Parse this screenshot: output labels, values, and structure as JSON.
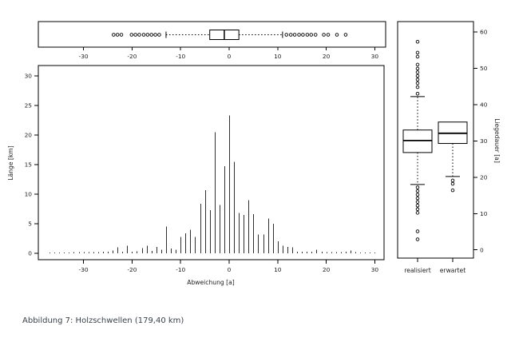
{
  "figure": {
    "caption": "Abbildung 7: Holzschwellen (179,40 km)",
    "background": "#ffffff",
    "line_color": "#000000",
    "bar_color": "#2f2f2f",
    "caption_color": "#3b4149"
  },
  "chart_data": [
    {
      "id": "top-boxplot",
      "type": "boxplot",
      "orientation": "horizontal",
      "x_ticks": [
        -30,
        -20,
        -10,
        0,
        10,
        20,
        30
      ],
      "xlim": [
        -39.5,
        32
      ],
      "box": {
        "q1": -4,
        "median": -1,
        "q3": 2,
        "whisker_low": -13,
        "whisker_high": 11
      },
      "outliers_low": [
        -23.8,
        -23,
        -22.2,
        -20.1,
        -19.3,
        -18.5,
        -17.6,
        -16.8,
        -16,
        -15.2,
        -14.4
      ],
      "outliers_high": [
        11.8,
        12.7,
        13.5,
        14.4,
        15.2,
        16.1,
        16.9,
        17.8,
        19.5,
        20.4,
        22.2,
        24
      ]
    },
    {
      "id": "main-spike-chart",
      "type": "bar",
      "xlabel": "Abweichung [a]",
      "ylabel": "Länge [km]",
      "x_ticks": [
        -30,
        -20,
        -10,
        0,
        10,
        20,
        30
      ],
      "y_ticks": [
        0,
        5,
        10,
        15,
        20,
        25,
        30
      ],
      "xlim": [
        -39.5,
        32
      ],
      "ylim": [
        -1,
        31.5
      ],
      "grid": false,
      "x": [
        -37,
        -36,
        -35,
        -34,
        -33,
        -32,
        -31,
        -30,
        -29,
        -28,
        -27,
        -26,
        -25,
        -24,
        -23,
        -22,
        -21,
        -20,
        -19,
        -18,
        -17,
        -16,
        -15,
        -14,
        -13,
        -12,
        -11,
        -10,
        -9,
        -8,
        -7,
        -6,
        -5,
        -4,
        -3,
        -2,
        -1,
        0,
        1,
        2,
        3,
        4,
        5,
        6,
        7,
        8,
        9,
        10,
        11,
        12,
        13,
        14,
        15,
        16,
        17,
        18,
        19,
        20,
        21,
        22,
        23,
        24,
        25,
        26,
        27,
        28,
        29,
        30
      ],
      "values": [
        0.15,
        0.15,
        0.15,
        0.15,
        0.15,
        0.2,
        0.2,
        0.2,
        0.2,
        0.2,
        0.2,
        0.25,
        0.3,
        0.5,
        1.0,
        0.3,
        1.3,
        0.3,
        0.35,
        0.9,
        1.3,
        0.4,
        1.1,
        0.6,
        4.5,
        0.8,
        0.6,
        2.8,
        3.4,
        4.0,
        2.8,
        8.4,
        10.7,
        7.3,
        20.5,
        8.2,
        14.7,
        23.3,
        15.5,
        6.8,
        6.5,
        9.0,
        6.6,
        3.2,
        3.2,
        5.9,
        5.0,
        2.0,
        1.3,
        1.1,
        1.0,
        0.25,
        0.25,
        0.25,
        0.3,
        0.6,
        0.25,
        0.2,
        0.2,
        0.2,
        0.2,
        0.25,
        0.5,
        0.2,
        0.15,
        0.15,
        0.15,
        0.15
      ]
    },
    {
      "id": "right-boxplots",
      "type": "boxplot",
      "orientation": "vertical",
      "ylabel": "Liegedauer [a]",
      "y_ticks": [
        0,
        10,
        20,
        30,
        40,
        50,
        60
      ],
      "ylim": [
        -3,
        63
      ],
      "categories": [
        "realisiert",
        "erwartet"
      ],
      "boxes": [
        {
          "label": "realisiert",
          "q1": 26.8,
          "median": 30.1,
          "q3": 33.0,
          "whisker_low": 18.0,
          "whisker_high": 42.2,
          "outliers": [
            57.3,
            54.3,
            53.2,
            51.0,
            49.9,
            48.9,
            47.9,
            46.9,
            45.9,
            44.8,
            43.0,
            17.2,
            16.2,
            15.2,
            14.2,
            13.2,
            12.2,
            11.2,
            10.2,
            5.1,
            2.9
          ]
        },
        {
          "label": "erwartet",
          "q1": 29.3,
          "median": 32.1,
          "q3": 35.2,
          "whisker_low": 20.2,
          "whisker_high": null,
          "outliers": [
            19.1,
            18.2,
            16.4
          ]
        }
      ]
    }
  ]
}
